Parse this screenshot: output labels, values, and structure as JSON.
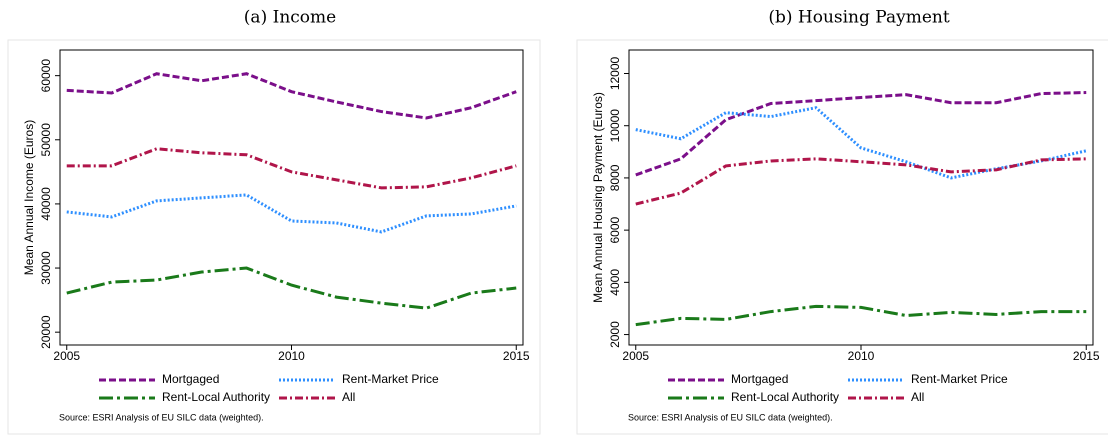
{
  "chart_data": [
    {
      "type": "line",
      "title": "(a) Income",
      "y_label": "Mean Annual Income (Euros)",
      "x": [
        2005,
        2006,
        2007,
        2008,
        2009,
        2010,
        2011,
        2012,
        2013,
        2014,
        2015
      ],
      "xlim": [
        2004.85,
        2015.15
      ],
      "xticks": [
        2005,
        2010,
        2015
      ],
      "ylim": [
        18000,
        64000
      ],
      "yticks": [
        20000,
        30000,
        40000,
        50000,
        60000
      ],
      "series": [
        {
          "name": "Mortgaged",
          "color": "#7b0f8a",
          "line_style": "dashed",
          "values": [
            57700,
            57300,
            60300,
            59200,
            60300,
            57500,
            55900,
            54400,
            53400,
            55000,
            57500
          ]
        },
        {
          "name": "Rent-Market Price",
          "color": "#2e8fff",
          "line_style": "dotted",
          "values": [
            38750,
            37970,
            40470,
            40940,
            41400,
            37340,
            37030,
            35630,
            38130,
            38440,
            39690
          ]
        },
        {
          "name": "Rent-Local Authority",
          "color": "#1a7a1a",
          "line_style": "longdash",
          "values": [
            26100,
            27810,
            28130,
            29380,
            30000,
            27340,
            25470,
            24530,
            23750,
            26100,
            26880
          ]
        },
        {
          "name": "All",
          "color": "#b0154a",
          "line_style": "dashdot",
          "values": [
            45940,
            45940,
            48600,
            47970,
            47660,
            45000,
            43750,
            42500,
            42660,
            44060,
            45940
          ]
        }
      ],
      "note": "Source:  ESRI Analysis of EU SILC data (weighted)."
    },
    {
      "type": "line",
      "title": "(b) Housing Payment",
      "y_label": "Mean Annual Housing Payment (Euros)",
      "x": [
        2005,
        2006,
        2007,
        2008,
        2009,
        2010,
        2011,
        2012,
        2013,
        2014,
        2015
      ],
      "xlim": [
        2004.85,
        2015.15
      ],
      "xticks": [
        2005,
        2010,
        2015
      ],
      "ylim": [
        1600,
        12900
      ],
      "yticks": [
        2000,
        4000,
        6000,
        8000,
        10000,
        12000
      ],
      "series": [
        {
          "name": "Mortgaged",
          "color": "#7b0f8a",
          "line_style": "dashed",
          "values": [
            8115,
            8730,
            10230,
            10850,
            10960,
            11080,
            11190,
            10880,
            10880,
            11230,
            11270
          ]
        },
        {
          "name": "Rent-Market Price",
          "color": "#2e8fff",
          "line_style": "dotted",
          "values": [
            9850,
            9500,
            10500,
            10350,
            10690,
            9150,
            8620,
            8000,
            8350,
            8650,
            9040
          ]
        },
        {
          "name": "Rent-Local Authority",
          "color": "#1a7a1a",
          "line_style": "longdash",
          "values": [
            2380,
            2620,
            2580,
            2880,
            3080,
            3040,
            2730,
            2850,
            2770,
            2880,
            2880
          ]
        },
        {
          "name": "All",
          "color": "#b0154a",
          "line_style": "dashdot",
          "values": [
            7000,
            7420,
            8460,
            8650,
            8730,
            8620,
            8500,
            8230,
            8310,
            8690,
            8730
          ]
        }
      ],
      "note": "Source:  ESRI Analysis of EU SILC data (weighted)."
    }
  ]
}
